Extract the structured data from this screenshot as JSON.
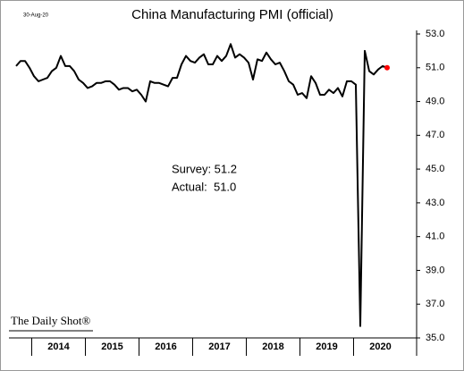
{
  "chart_data": {
    "type": "line",
    "title": "China Manufacturing PMI (official)",
    "date_note": "30-Aug-20",
    "source": "The Daily Shot®",
    "annotations": [
      "Survey: 51.2",
      "Actual:  51.0"
    ],
    "x_labels": [
      "2014",
      "2015",
      "2016",
      "2017",
      "2018",
      "2019",
      "2020"
    ],
    "series": [
      {
        "name": "China Manufacturing PMI",
        "color": "#000000",
        "last_point_color": "#ff0000",
        "values": [
          51.1,
          51.4,
          51.4,
          51.0,
          50.5,
          50.2,
          50.3,
          50.4,
          50.8,
          51.0,
          51.7,
          51.1,
          51.1,
          50.8,
          50.3,
          50.1,
          49.8,
          49.9,
          50.1,
          50.1,
          50.2,
          50.2,
          50.0,
          49.7,
          49.8,
          49.8,
          49.6,
          49.7,
          49.4,
          49.0,
          50.2,
          50.1,
          50.1,
          50.0,
          49.9,
          50.4,
          50.4,
          51.2,
          51.7,
          51.4,
          51.3,
          51.6,
          51.8,
          51.2,
          51.2,
          51.7,
          51.4,
          51.7,
          52.4,
          51.6,
          51.8,
          51.6,
          51.3,
          50.3,
          51.5,
          51.4,
          51.9,
          51.5,
          51.2,
          51.3,
          50.8,
          50.2,
          50.0,
          49.4,
          49.5,
          49.2,
          50.5,
          50.1,
          49.4,
          49.4,
          49.7,
          49.5,
          49.8,
          49.3,
          50.2,
          50.2,
          50.0,
          35.7,
          52.0,
          50.8,
          50.6,
          50.9,
          51.1,
          51.0
        ]
      }
    ],
    "ylim": [
      35,
      53
    ],
    "yticks": [
      {
        "value": 35,
        "label": "35.0"
      },
      {
        "value": 37,
        "label": "37.0"
      },
      {
        "value": 39,
        "label": "39.0"
      },
      {
        "value": 41,
        "label": "41.0"
      },
      {
        "value": 43,
        "label": "43.0"
      },
      {
        "value": 45,
        "label": "45.0"
      },
      {
        "value": 47,
        "label": "47.0"
      },
      {
        "value": 49,
        "label": "49.0"
      },
      {
        "value": 51,
        "label": "51.0"
      },
      {
        "value": 53,
        "label": "53.0"
      }
    ]
  }
}
